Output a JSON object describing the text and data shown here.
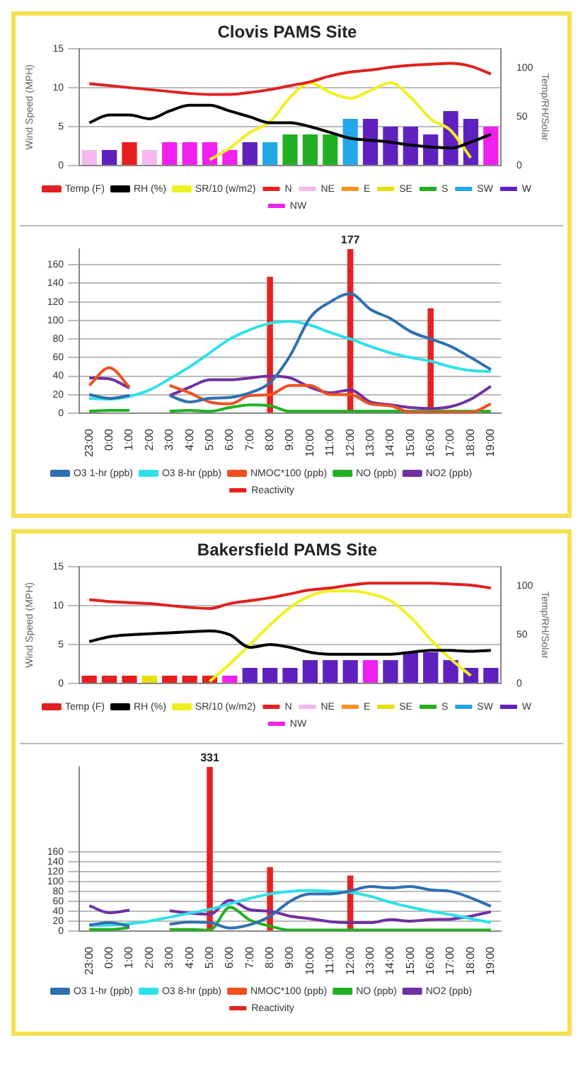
{
  "chart_data": [
    {
      "type": "bar",
      "title": "Clovis PAMS Site",
      "ylabel": "Wind Speed (MPH)",
      "y2label": "Temp/RH/Solar",
      "categories": [
        null,
        null,
        null,
        null,
        null,
        null,
        null,
        null,
        null,
        null,
        null,
        null,
        null,
        null,
        null,
        null,
        null,
        null,
        null,
        null,
        null
      ],
      "stacked": true,
      "ylim": [
        0,
        15
      ],
      "yticks": [
        0,
        5,
        10,
        15
      ],
      "y2lim": [
        0,
        120
      ],
      "y2ticks": [
        0,
        50,
        100
      ],
      "grid": "y",
      "legend": "bottom",
      "tick_labels": "y",
      "marker": "none",
      "line_style": "solid",
      "series": [
        {
          "name": "N",
          "color": "#e81e1e",
          "values": [
            null,
            null,
            3,
            null,
            null,
            null,
            null,
            null,
            null,
            null,
            null,
            null,
            null,
            null,
            null,
            null,
            null,
            null,
            null,
            null,
            null
          ]
        },
        {
          "name": "NE",
          "color": "#f4b8f0",
          "values": [
            2,
            null,
            null,
            2,
            null,
            null,
            null,
            null,
            null,
            null,
            null,
            null,
            null,
            null,
            null,
            null,
            null,
            null,
            null,
            null,
            null
          ]
        },
        {
          "name": "E",
          "color": "#f79020",
          "values": [
            null,
            null,
            null,
            null,
            null,
            null,
            null,
            null,
            null,
            null,
            null,
            null,
            null,
            null,
            null,
            null,
            null,
            null,
            null,
            null,
            null
          ]
        },
        {
          "name": "SE",
          "color": "#e8e000",
          "values": [
            null,
            null,
            null,
            null,
            null,
            null,
            null,
            null,
            null,
            null,
            null,
            null,
            null,
            null,
            null,
            null,
            null,
            null,
            null,
            null,
            null
          ]
        },
        {
          "name": "S",
          "color": "#22b022",
          "values": [
            null,
            null,
            null,
            null,
            null,
            null,
            null,
            null,
            null,
            null,
            4,
            4,
            4,
            null,
            null,
            null,
            null,
            null,
            null,
            null,
            null
          ]
        },
        {
          "name": "SW",
          "color": "#22a8e8",
          "values": [
            null,
            null,
            null,
            null,
            null,
            null,
            null,
            null,
            null,
            3,
            null,
            null,
            null,
            6,
            null,
            null,
            null,
            null,
            null,
            null,
            null
          ]
        },
        {
          "name": "W",
          "color": "#6020c0",
          "values": [
            null,
            2,
            null,
            null,
            null,
            null,
            null,
            null,
            3,
            null,
            null,
            null,
            null,
            null,
            6,
            5,
            5,
            4,
            7,
            6,
            null
          ]
        },
        {
          "name": "NW",
          "color": "#f020f0",
          "values": [
            null,
            null,
            null,
            null,
            3,
            3,
            3,
            2,
            null,
            null,
            null,
            null,
            null,
            null,
            null,
            null,
            null,
            null,
            null,
            null,
            5
          ]
        },
        {
          "name": "Temp (F)",
          "type": "line",
          "axis": "y2",
          "color": "#e02020",
          "values": [
            84,
            82,
            80,
            78,
            76,
            74,
            73,
            73,
            75,
            78,
            82,
            86,
            92,
            96,
            98,
            101,
            103,
            104,
            105,
            102,
            94
          ]
        },
        {
          "name": "RH (%)",
          "type": "line",
          "axis": "y2",
          "color": "#000000",
          "values": [
            44,
            52,
            52,
            48,
            56,
            62,
            62,
            56,
            50,
            44,
            44,
            40,
            34,
            28,
            26,
            24,
            21,
            19,
            18,
            24,
            32
          ]
        },
        {
          "name": "SR/10 (w/m2)",
          "type": "line",
          "axis": "y2",
          "color": "#f0f020",
          "values": [
            null,
            null,
            null,
            null,
            null,
            null,
            6,
            18,
            34,
            45,
            70,
            85,
            75,
            69,
            77,
            85,
            70,
            48,
            36,
            8,
            null
          ]
        }
      ]
    },
    {
      "type": "line",
      "categories": [
        "23:00",
        "0:00",
        "1:00",
        "2:00",
        "3:00",
        "4:00",
        "5:00",
        "6:00",
        "7:00",
        "8:00",
        "9:00",
        "10:00",
        "11:00",
        "12:00",
        "13:00",
        "14:00",
        "15:00",
        "16:00",
        "17:00",
        "18:00",
        "19:00"
      ],
      "ylim": [
        0,
        177
      ],
      "yticks": [
        0,
        20,
        40,
        60,
        80,
        100,
        120,
        140,
        160
      ],
      "grid": "y",
      "legend": "bottom",
      "marker": "none",
      "line_style": "solid",
      "series": [
        {
          "name": "Reactivity",
          "type": "bar",
          "color": "#e82020",
          "values": [
            null,
            null,
            null,
            null,
            null,
            null,
            null,
            null,
            null,
            147,
            null,
            null,
            null,
            177,
            null,
            null,
            null,
            113,
            null,
            null,
            null
          ],
          "value_labels": [
            null,
            null,
            null,
            null,
            null,
            null,
            null,
            null,
            null,
            null,
            null,
            null,
            null,
            "177",
            null,
            null,
            null,
            null,
            null,
            null,
            null
          ]
        },
        {
          "name": "O3 1-hr (ppb)",
          "color": "#3070b0",
          "values": [
            20,
            16,
            19,
            null,
            19,
            12,
            16,
            17,
            22,
            33,
            62,
            103,
            120,
            129,
            112,
            102,
            88,
            80,
            72,
            60,
            47
          ]
        },
        {
          "name": "O3 8-hr (ppb)",
          "color": "#30e0e8",
          "values": [
            16,
            15,
            18,
            25,
            37,
            50,
            65,
            80,
            90,
            97,
            99,
            95,
            87,
            80,
            72,
            65,
            60,
            56,
            50,
            46,
            45
          ]
        },
        {
          "name": "NMOC*100 (ppb)",
          "color": "#f05020",
          "values": [
            30,
            49,
            28,
            null,
            30,
            22,
            12,
            10,
            19,
            20,
            30,
            30,
            20,
            20,
            10,
            8,
            1,
            1,
            1,
            1,
            10
          ]
        },
        {
          "name": "NO (ppb)",
          "color": "#22b022",
          "values": [
            2,
            3,
            3,
            null,
            2,
            3,
            2,
            6,
            9,
            8,
            2,
            2,
            2,
            2,
            2,
            2,
            2,
            2,
            2,
            2,
            2
          ]
        },
        {
          "name": "NO2 (ppb)",
          "color": "#7030a0",
          "values": [
            38,
            37,
            27,
            null,
            19,
            28,
            36,
            36,
            38,
            40,
            38,
            28,
            22,
            25,
            12,
            9,
            6,
            5,
            7,
            15,
            29
          ]
        }
      ]
    },
    {
      "type": "bar",
      "title": "Bakersfield PAMS Site",
      "ylabel": "Wind Speed (MPH)",
      "y2label": "Temp/RH/Solar",
      "categories": [
        null,
        null,
        null,
        null,
        null,
        null,
        null,
        null,
        null,
        null,
        null,
        null,
        null,
        null,
        null,
        null,
        null,
        null,
        null,
        null,
        null
      ],
      "stacked": true,
      "ylim": [
        0,
        15
      ],
      "yticks": [
        0,
        5,
        10,
        15
      ],
      "y2lim": [
        0,
        120
      ],
      "y2ticks": [
        0,
        50,
        100
      ],
      "grid": "y",
      "legend": "bottom",
      "tick_labels": "y",
      "marker": "none",
      "line_style": "solid",
      "series": [
        {
          "name": "N",
          "color": "#e81e1e",
          "values": [
            1,
            1,
            1,
            null,
            1,
            1,
            1,
            null,
            null,
            null,
            null,
            null,
            null,
            null,
            null,
            null,
            null,
            null,
            null,
            null,
            null
          ]
        },
        {
          "name": "NE",
          "color": "#f4b8f0",
          "values": [
            null,
            null,
            null,
            null,
            null,
            null,
            null,
            null,
            null,
            null,
            null,
            null,
            null,
            null,
            null,
            null,
            null,
            null,
            null,
            null,
            null
          ]
        },
        {
          "name": "E",
          "color": "#f79020",
          "values": [
            null,
            null,
            null,
            null,
            null,
            null,
            null,
            null,
            null,
            null,
            null,
            null,
            null,
            null,
            null,
            null,
            null,
            null,
            null,
            null,
            null
          ]
        },
        {
          "name": "SE",
          "color": "#e8e000",
          "values": [
            null,
            null,
            null,
            1,
            null,
            null,
            null,
            null,
            null,
            null,
            null,
            null,
            null,
            null,
            null,
            null,
            null,
            null,
            null,
            null,
            null
          ]
        },
        {
          "name": "S",
          "color": "#22b022",
          "values": [
            null,
            null,
            null,
            null,
            null,
            null,
            null,
            null,
            null,
            null,
            null,
            null,
            null,
            null,
            null,
            null,
            null,
            null,
            null,
            null,
            null
          ]
        },
        {
          "name": "SW",
          "color": "#22a8e8",
          "values": [
            null,
            null,
            null,
            null,
            null,
            null,
            null,
            null,
            null,
            null,
            null,
            null,
            null,
            null,
            null,
            null,
            null,
            null,
            null,
            null,
            null
          ]
        },
        {
          "name": "W",
          "color": "#6020c0",
          "values": [
            null,
            null,
            null,
            null,
            null,
            null,
            null,
            null,
            2,
            2,
            2,
            3,
            3,
            3,
            null,
            3,
            4,
            4,
            3,
            2,
            2
          ]
        },
        {
          "name": "NW",
          "color": "#f020f0",
          "values": [
            null,
            null,
            null,
            null,
            null,
            null,
            null,
            1,
            null,
            null,
            null,
            null,
            null,
            null,
            3,
            null,
            null,
            null,
            null,
            null,
            null
          ]
        },
        {
          "name": "Temp (F)",
          "type": "line",
          "axis": "y2",
          "color": "#e02020",
          "values": [
            86,
            84,
            83,
            82,
            80,
            78,
            77,
            82,
            85,
            88,
            92,
            96,
            98,
            101,
            103,
            103,
            103,
            103,
            102,
            101,
            98
          ]
        },
        {
          "name": "RH (%)",
          "type": "line",
          "axis": "y2",
          "color": "#000000",
          "values": [
            43,
            48,
            50,
            51,
            52,
            53,
            54,
            50,
            37,
            40,
            37,
            32,
            30,
            30,
            30,
            30,
            32,
            34,
            34,
            33,
            34
          ]
        },
        {
          "name": "SR/10 (w/m2)",
          "type": "line",
          "axis": "y2",
          "color": "#f0f020",
          "values": [
            null,
            null,
            null,
            null,
            null,
            null,
            2,
            20,
            40,
            60,
            78,
            90,
            95,
            95,
            92,
            85,
            68,
            45,
            25,
            8,
            null
          ]
        }
      ]
    },
    {
      "type": "line",
      "categories": [
        "23:00",
        "0:00",
        "1:00",
        "2:00",
        "3:00",
        "4:00",
        "5:00",
        "6:00",
        "7:00",
        "8:00",
        "9:00",
        "10:00",
        "11:00",
        "12:00",
        "13:00",
        "14:00",
        "15:00",
        "16:00",
        "17:00",
        "18:00",
        "19:00"
      ],
      "ylim": [
        0,
        331
      ],
      "yticks": [
        0,
        20,
        40,
        60,
        80,
        100,
        120,
        140,
        160
      ],
      "grid": "y",
      "legend": "bottom",
      "marker": "none",
      "line_style": "solid",
      "series": [
        {
          "name": "Reactivity",
          "type": "bar",
          "color": "#e82020",
          "values": [
            null,
            null,
            null,
            null,
            null,
            null,
            331,
            null,
            null,
            129,
            null,
            null,
            null,
            112,
            null,
            null,
            null,
            null,
            null,
            null,
            null
          ],
          "value_labels": [
            null,
            null,
            null,
            null,
            null,
            null,
            "331",
            null,
            null,
            null,
            null,
            null,
            null,
            null,
            null,
            null,
            null,
            null,
            null,
            null,
            null
          ]
        },
        {
          "name": "O3 1-hr (ppb)",
          "color": "#3070b0",
          "values": [
            12,
            17,
            10,
            null,
            14,
            18,
            17,
            6,
            13,
            30,
            60,
            75,
            75,
            81,
            90,
            87,
            90,
            83,
            80,
            67,
            50
          ]
        },
        {
          "name": "O3 8-hr (ppb)",
          "color": "#30e0e8",
          "values": [
            11,
            12,
            15,
            20,
            28,
            36,
            44,
            55,
            66,
            75,
            80,
            82,
            80,
            78,
            70,
            58,
            48,
            40,
            33,
            25,
            17
          ]
        },
        {
          "name": "NMOC*100 (ppb)",
          "color": "#f05020",
          "values": [
            null,
            null,
            null,
            null,
            null,
            null,
            null,
            null,
            null,
            null,
            null,
            null,
            null,
            null,
            null,
            null,
            null,
            null,
            null,
            null,
            null
          ]
        },
        {
          "name": "NO (ppb)",
          "color": "#22b022",
          "values": [
            3,
            3,
            7,
            null,
            3,
            3,
            2,
            48,
            22,
            10,
            2,
            2,
            2,
            2,
            2,
            2,
            2,
            2,
            2,
            2,
            2
          ]
        },
        {
          "name": "NO2 (ppb)",
          "color": "#7030a0",
          "values": [
            51,
            37,
            42,
            null,
            41,
            36,
            34,
            62,
            43,
            40,
            30,
            25,
            19,
            17,
            17,
            23,
            20,
            23,
            24,
            30,
            39
          ]
        }
      ]
    }
  ]
}
